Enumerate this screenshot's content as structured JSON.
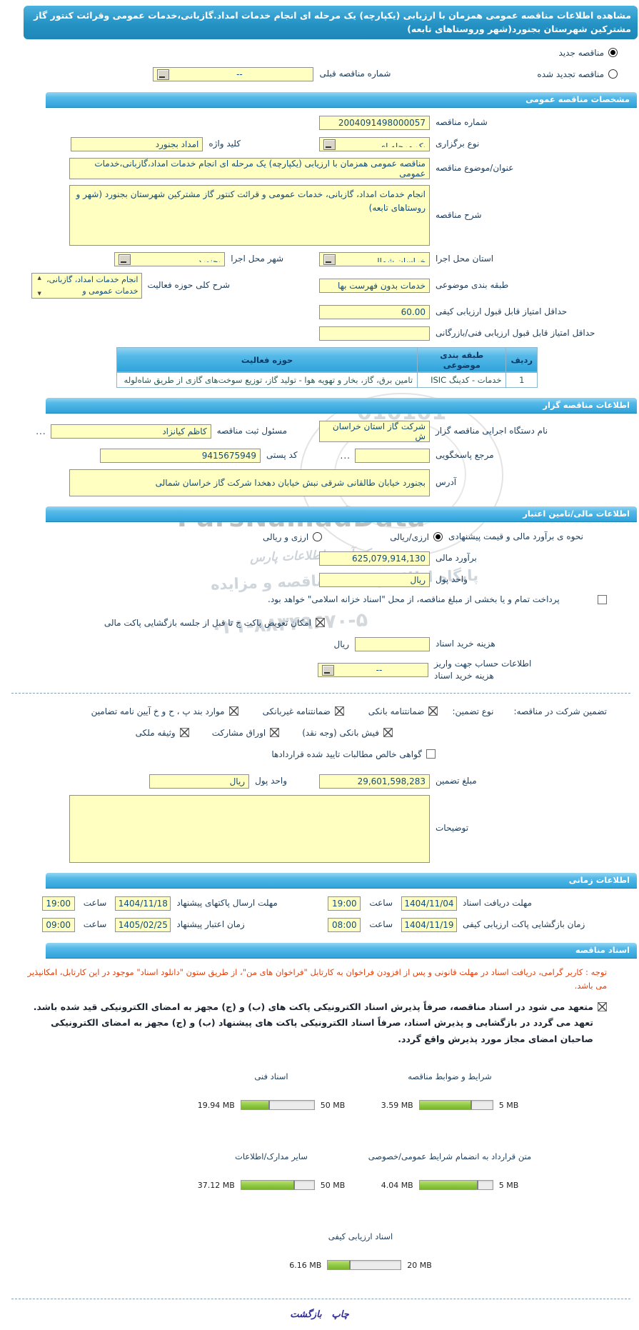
{
  "colors": {
    "accent_blue": "#2d9fd6",
    "field_yellow": "#ffffc2",
    "progress_green": "#8cc63f",
    "notice_red": "#e2400e"
  },
  "page_title": "مشاهده اطلاعات مناقصه عمومی همزمان با ارزیابی (یکپارچه) یک مرحله ای انجام خدمات امداد.گازبانی،خدمات عمومی وقرائت کنتور گاز مشترکین شهرستان بجنورد(شهر وروستاهای تابعه)",
  "tender_type": {
    "new_label": "مناقصه جدید",
    "new_selected": true,
    "renewed_label": "مناقصه تجدید شده",
    "renewed_selected": false,
    "prev_no_label": "شماره مناقصه قبلی",
    "prev_no_value": "--"
  },
  "general": {
    "header": "مشخصات مناقصه عمومی",
    "tender_no_label": "شماره مناقصه",
    "tender_no_value": "2004091498000057",
    "holding_label": "نوع برگزاری",
    "holding_value": "یک مرحله ای",
    "keyword_label": "کلید واژه",
    "keyword_value": "امداد بجنورد",
    "subject_label": "عنوان/موضوع مناقصه",
    "subject_value": "مناقصه عمومی همزمان با ارزیابی (یکپارچه) یک مرحله ای انجام خدمات امداد،گازبانی،خدمات عمومی",
    "desc_label": "شرح مناقصه",
    "desc_value": "انجام خدمات امداد، گازبانی، خدمات عمومی و قرائت کنتور گاز مشترکین شهرستان بجنورد (شهر و روستاهای تابعه)",
    "province_label": "استان محل اجرا",
    "province_value": "خراسان شمالی",
    "city_label": "شهر محل اجرا",
    "city_value": "بجنورد",
    "category_label": "طبقه بندی موضوعی",
    "category_value": "خدمات بدون فهرست بها",
    "activity_label": "شرح کلی حوزه فعالیت",
    "activity_value": "انجام خدمات امداد، گازبانی، خدمات عمومی و",
    "min_quality_label": "حداقل امتیاز قابل قبول ارزیابی کیفی",
    "min_quality_value": "60.00",
    "min_tech_label": "حداقل امتیاز قابل قبول ارزیابی فنی/بازرگانی",
    "min_tech_value": ""
  },
  "category_table": {
    "col_row": "ردیف",
    "col_class": "طبقه بندی موضوعی",
    "col_activity": "حوزه فعالیت",
    "row_index": "1",
    "row_class": "خدمات - کدینگ ISIC",
    "row_activity": "تامین برق، گاز، بخار و تهویه هوا - تولید گاز، توزیع سوخت‌های گازی از طریق شاه‌لوله"
  },
  "agency": {
    "header": "اطلاعات مناقصه گزار",
    "org_label": "نام دستگاه اجرایی مناقصه گزار",
    "org_value": "شرکت گاز استان خراسان ش",
    "registrar_label": "مسئول ثبت مناقصه",
    "registrar_value": "کاظم کیانزاد",
    "more_button": "...",
    "contact_label": "مرجع پاسخگویی",
    "contact_value": "",
    "postal_label": "کد پستی",
    "postal_value": "9415675949",
    "address_label": "آدرس",
    "address_value": "بجنورد خیابان طالقانی شرقی نبش خیابان دهخدا شرکت گاز خراسان شمالی"
  },
  "financial": {
    "header": "اطلاعات مالی/تامین اعتبار",
    "method_label": "نحوه ی برآورد مالی و قیمت پیشنهادی",
    "method_rial": "ارزی/ریالی",
    "rial_selected": true,
    "method_both": "ارزی و ریالی",
    "both_selected": false,
    "estimate_label": "برآورد مالی",
    "estimate_value": "625,079,914,130",
    "currency_label": "واحد پول",
    "currency_value": "ریال",
    "treasury_note": "پرداخت تمام و یا بخشی از مبلغ مناقصه، از محل \"اسناد خزانه اسلامی\" خواهد بود.",
    "treasury_checked": false,
    "exchange_note": "امکان تعویض پاکت ج تا قبل از جلسه بازگشایی پاکت مالی",
    "exchange_checked": true,
    "fee_label": "هزینه خرید اسناد",
    "fee_value": "",
    "fee_unit": "ریال",
    "account_label": "اطلاعات حساب جهت واریز هزینه خرید اسناد",
    "account_value": "--"
  },
  "guarantee": {
    "intro": "تضمین شرکت در مناقصه:",
    "type_label": "نوع تضمین:",
    "options": [
      {
        "label": "ضمانتنامه بانکی",
        "checked": true
      },
      {
        "label": "ضمانتنامه غیربانکی",
        "checked": true
      },
      {
        "label": "موارد بند پ ، ح و خ آیین نامه تضامین",
        "checked": true
      },
      {
        "label": "فیش بانکی (وجه نقد)",
        "checked": true
      },
      {
        "label": "اوراق مشارکت",
        "checked": true
      },
      {
        "label": "وثیقه ملکی",
        "checked": true
      },
      {
        "label": "گواهی خالص مطالبات تایید شده قراردادها",
        "checked": false
      }
    ],
    "amount_label": "مبلغ تضمین",
    "amount_value": "29,601,598,283",
    "currency_label": "واحد پول",
    "currency_value": "ریال",
    "notes_label": "توضیحات",
    "notes_value": ""
  },
  "schedule": {
    "header": "اطلاعات زمانی",
    "hour_label": "ساعت",
    "items": [
      {
        "label": "مهلت دریافت اسناد",
        "date": "1404/11/04",
        "time": "19:00"
      },
      {
        "label": "مهلت ارسال پاکتهای پیشنهاد",
        "date": "1404/11/18",
        "time": "19:00"
      },
      {
        "label": "زمان بازگشایی پاکت ارزیابی کیفی",
        "date": "1404/11/19",
        "time": "08:00"
      },
      {
        "label": "زمان اعتبار پیشنهاد",
        "date": "1405/02/25",
        "time": "09:00"
      }
    ]
  },
  "documents": {
    "header": "اسناد مناقصه",
    "notice": "توجه : کاربر گرامی، دریافت اسناد در مهلت قانونی و پس از افزودن فراخوان به کارتابل \"فراخوان های من\"، از طریق ستون \"دانلود اسناد\" موجود در این کارتابل، امکانپذیر می باشد.",
    "commitment_checked": true,
    "commitment_1": "متعهد می شود در اسناد مناقصه، صرفاً پذیرش اسناد الکترونیکی پاکت های (ب) و (ج) مجهز به امضای الکترونیکی قید شده باشد.",
    "commitment_2": "تعهد می گردد در بازگشایی و پذیرش اسناد، صرفاً اسناد الکترونیکی پاکت های پیشنهاد (ب) و (ج) مجهز به امضای الکترونیکی صاحبان امضای مجاز مورد پذیرش واقع گردد.",
    "uploads": [
      {
        "label": "شرایط و ضوابط مناقصه",
        "current": "3.59 MB",
        "max": "5 MB",
        "current_mb": 3.59,
        "max_mb": 5
      },
      {
        "label": "اسناد فنی",
        "current": "19.94 MB",
        "max": "50 MB",
        "current_mb": 19.94,
        "max_mb": 50
      },
      {
        "label": "متن قرارداد به انضمام شرایط عمومی/خصوصی",
        "current": "4.04 MB",
        "max": "5 MB",
        "current_mb": 4.04,
        "max_mb": 5
      },
      {
        "label": "سایر مدارک/اطلاعات",
        "current": "37.12 MB",
        "max": "50 MB",
        "current_mb": 37.12,
        "max_mb": 50
      },
      {
        "label": "اسناد ارزیابی کیفی",
        "current": "6.16 MB",
        "max": "20 MB",
        "current_mb": 6.16,
        "max_mb": 20
      }
    ]
  },
  "footer": {
    "print_label": "چاپ",
    "back_label": "بازگشت"
  },
  "watermark": {
    "brand": "ParsNamadData",
    "fa_title": "پایگاه اطلاع رسانی مناقصه و مزایده",
    "fa_script": "مرکز آوری اطلاعات پارس",
    "phone": "۰۲۱-۸۸۳۴۹۶۷۰-۵",
    "digits": "010101"
  }
}
